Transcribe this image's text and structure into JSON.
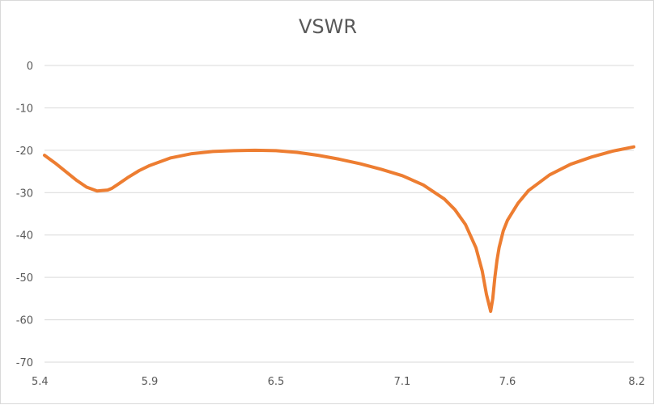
{
  "chart_data": {
    "type": "line",
    "title": "VSWR",
    "xlabel": "",
    "ylabel": "",
    "xlim": [
      5.4,
      8.2
    ],
    "ylim": [
      -70,
      0
    ],
    "x_ticks": [
      "5.4",
      "5.9",
      "6.5",
      "7.1",
      "7.6",
      "8.2"
    ],
    "y_ticks": [
      "0",
      "-10",
      "-20",
      "-30",
      "-40",
      "-50",
      "-60",
      "-70"
    ],
    "grid": true,
    "legend": "none",
    "colors": {
      "line": "#ED7D31",
      "grid": "#d9d9d9",
      "text": "#595959"
    },
    "series": [
      {
        "x": [
          5.4,
          5.45,
          5.5,
          5.55,
          5.6,
          5.65,
          5.7,
          5.72,
          5.75,
          5.8,
          5.85,
          5.9,
          6.0,
          6.1,
          6.2,
          6.3,
          6.4,
          6.5,
          6.6,
          6.7,
          6.8,
          6.9,
          7.0,
          7.1,
          7.2,
          7.3,
          7.35,
          7.4,
          7.45,
          7.48,
          7.5,
          7.52,
          7.53,
          7.54,
          7.55,
          7.56,
          7.58,
          7.6,
          7.65,
          7.7,
          7.8,
          7.9,
          8.0,
          8.1,
          8.2
        ],
        "y": [
          -21.2,
          -23.0,
          -25.0,
          -27.0,
          -28.7,
          -29.6,
          -29.4,
          -29.0,
          -28.0,
          -26.3,
          -24.8,
          -23.6,
          -21.8,
          -20.8,
          -20.3,
          -20.1,
          -20.0,
          -20.1,
          -20.5,
          -21.2,
          -22.1,
          -23.2,
          -24.5,
          -26.0,
          -28.2,
          -31.5,
          -34.0,
          -37.5,
          -43.0,
          -48.5,
          -54.0,
          -58.0,
          -55.0,
          -50.0,
          -46.0,
          -43.0,
          -39.0,
          -36.5,
          -32.5,
          -29.5,
          -25.8,
          -23.3,
          -21.6,
          -20.2,
          -19.2
        ]
      }
    ]
  }
}
